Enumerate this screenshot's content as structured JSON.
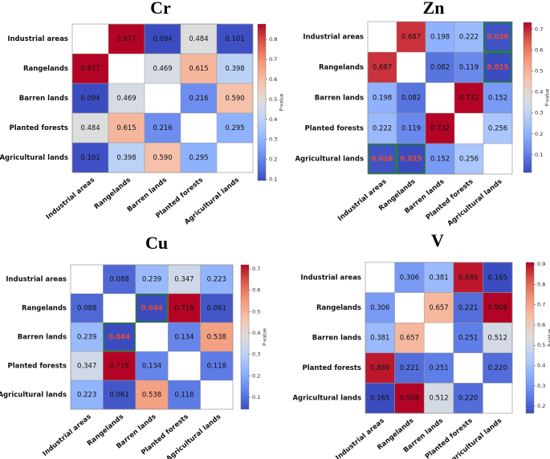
{
  "chart_data": [
    {
      "type": "heatmap",
      "title": "Cr",
      "colorbar_label": "P-value",
      "cmap": "coolwarm",
      "categories": [
        "Industrial areas",
        "Rangelands",
        "Barren lands",
        "Planted forests",
        "Agricultural lands"
      ],
      "values": [
        [
          null,
          0.877,
          0.094,
          0.484,
          0.101
        ],
        [
          0.877,
          null,
          0.469,
          0.615,
          0.398
        ],
        [
          0.094,
          0.469,
          null,
          0.216,
          0.59
        ],
        [
          0.484,
          0.615,
          0.216,
          null,
          0.295
        ],
        [
          0.101,
          0.398,
          0.59,
          0.295,
          null
        ]
      ],
      "value_labels": [
        [
          null,
          "0.877",
          "0.094",
          "0.484",
          "0.101"
        ],
        [
          "0.877",
          null,
          "0.469",
          "0.615",
          "0.398"
        ],
        [
          "0.094",
          "0.469",
          null,
          "0.216",
          "0.590"
        ],
        [
          "0.484",
          "0.615",
          "0.216",
          null,
          "0.295"
        ],
        [
          "0.101",
          "0.398",
          "0.590",
          "0.295",
          null
        ]
      ],
      "clim": [
        0.094,
        0.877
      ],
      "cticks": [
        0.1,
        0.2,
        0.3,
        0.4,
        0.5,
        0.6,
        0.7,
        0.8
      ],
      "highlight_threshold": 0.05,
      "highlight_text_color": "#f04a2a",
      "highlight_border_color": "#1f7a3c"
    },
    {
      "type": "heatmap",
      "title": "Zn",
      "colorbar_label": "P-value",
      "cmap": "coolwarm",
      "categories": [
        "Industrial areas",
        "Rangelands",
        "Barren lands",
        "Planted forests",
        "Agricultural lands"
      ],
      "values": [
        [
          null,
          0.687,
          0.198,
          0.222,
          0.026
        ],
        [
          0.687,
          null,
          0.082,
          0.119,
          0.015
        ],
        [
          0.198,
          0.082,
          null,
          0.732,
          0.152
        ],
        [
          0.222,
          0.119,
          0.732,
          null,
          0.256
        ],
        [
          0.026,
          0.015,
          0.152,
          0.256,
          null
        ]
      ],
      "value_labels": [
        [
          null,
          "0.687",
          "0.198",
          "0.222",
          "0.026"
        ],
        [
          "0.687",
          null,
          "0.082",
          "0.119",
          "0.015"
        ],
        [
          "0.198",
          "0.082",
          null,
          "0.732",
          "0.152"
        ],
        [
          "0.222",
          "0.119",
          "0.732",
          null,
          "0.256"
        ],
        [
          "0.026",
          "0.015",
          "0.152",
          "0.256",
          null
        ]
      ],
      "clim": [
        0.015,
        0.732
      ],
      "cticks": [
        0.1,
        0.2,
        0.3,
        0.4,
        0.5,
        0.6,
        0.7
      ],
      "highlight_threshold": 0.05,
      "highlight_text_color": "#f04a2a",
      "highlight_border_color": "#1f7a3c"
    },
    {
      "type": "heatmap",
      "title": "Cu",
      "colorbar_label": "P-value",
      "cmap": "coolwarm",
      "categories": [
        "Industrial areas",
        "Rangelands",
        "Barren lands",
        "Planted forests",
        "Agricultural lands"
      ],
      "values": [
        [
          null,
          0.088,
          0.239,
          0.347,
          0.223
        ],
        [
          0.088,
          null,
          0.044,
          0.719,
          0.061
        ],
        [
          0.239,
          0.044,
          null,
          0.134,
          0.538
        ],
        [
          0.347,
          0.719,
          0.134,
          null,
          0.118
        ],
        [
          0.223,
          0.061,
          0.538,
          0.118,
          null
        ]
      ],
      "value_labels": [
        [
          null,
          "0.088",
          "0.239",
          "0.347",
          "0.223"
        ],
        [
          "0.088",
          null,
          "0.044",
          "0.719",
          "0.061"
        ],
        [
          "0.239",
          "0.044",
          null,
          "0.134",
          "0.538"
        ],
        [
          "0.347",
          "0.719",
          "0.134",
          null,
          "0.118"
        ],
        [
          "0.223",
          "0.061",
          "0.538",
          "0.118",
          null
        ]
      ],
      "clim": [
        0.044,
        0.719
      ],
      "cticks": [
        0.1,
        0.2,
        0.3,
        0.4,
        0.5,
        0.6,
        0.7
      ],
      "highlight_threshold": 0.05,
      "highlight_text_color": "#f04a2a",
      "highlight_border_color": "#1f7a3c"
    },
    {
      "type": "heatmap",
      "title": "V",
      "colorbar_label": "P-value",
      "cmap": "coolwarm",
      "categories": [
        "Industrial areas",
        "Rangelands",
        "Barren lands",
        "Planted forests",
        "Agricultural lands"
      ],
      "values": [
        [
          null,
          0.306,
          0.381,
          0.889,
          0.165
        ],
        [
          0.306,
          null,
          0.657,
          0.221,
          0.908
        ],
        [
          0.381,
          0.657,
          null,
          0.251,
          0.512
        ],
        [
          0.889,
          0.221,
          0.251,
          null,
          0.22
        ],
        [
          0.165,
          0.908,
          0.512,
          0.22,
          null
        ]
      ],
      "value_labels": [
        [
          null,
          "0.306",
          "0.381",
          "0.889",
          "0.165"
        ],
        [
          "0.306",
          null,
          "0.657",
          "0.221",
          "0.908"
        ],
        [
          "0.381",
          "0.657",
          null,
          "0.251",
          "0.512"
        ],
        [
          "0.889",
          "0.221",
          "0.251",
          null,
          "0.220"
        ],
        [
          "0.165",
          "0.908",
          "0.512",
          "0.220",
          null
        ]
      ],
      "clim": [
        0.165,
        0.908
      ],
      "cticks": [
        0.2,
        0.3,
        0.4,
        0.5,
        0.6,
        0.7,
        0.8,
        0.9
      ],
      "highlight_threshold": 0.05,
      "highlight_text_color": "#f04a2a",
      "highlight_border_color": "#1f7a3c"
    }
  ]
}
